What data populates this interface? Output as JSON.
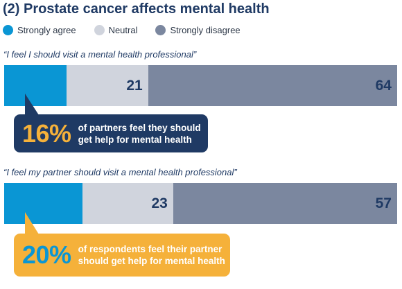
{
  "title": "(2) Prostate cancer affects mental health",
  "colors": {
    "strongly_agree": "#0a96d4",
    "neutral": "#d0d4dd",
    "strongly_disagree": "#7b879f",
    "navy": "#1f3a64",
    "callout1_bg": "#1f3a64",
    "callout1_accent": "#f5b13a",
    "callout2_bg": "#f5b13a",
    "callout2_accent": "#0a96d4"
  },
  "legend": [
    {
      "label": "Strongly agree",
      "color": "#0a96d4"
    },
    {
      "label": "Neutral",
      "color": "#d0d4dd"
    },
    {
      "label": "Strongly disagree",
      "color": "#7b879f"
    }
  ],
  "chart_data": {
    "type": "bar",
    "orientation": "horizontal-stacked",
    "title": "(2) Prostate cancer affects mental health",
    "categories": [
      "“I feel I should visit a mental health professional”",
      "“I feel my partner should visit a mental health professional”"
    ],
    "series": [
      {
        "name": "Strongly agree",
        "values": [
          16,
          20
        ]
      },
      {
        "name": "Neutral",
        "values": [
          21,
          23
        ]
      },
      {
        "name": "Strongly disagree",
        "values": [
          64,
          57
        ]
      }
    ],
    "data_labels": [
      [
        "",
        "21",
        "64"
      ],
      [
        "",
        "23",
        "57"
      ]
    ],
    "legend_position": "top-left",
    "grid": false
  },
  "callouts": [
    {
      "percent": "16%",
      "text_line1": "of partners feel they should",
      "text_line2": "get help for mental health"
    },
    {
      "percent": "20%",
      "text_line1": "of respondents feel their partner",
      "text_line2": "should get help for mental health"
    }
  ]
}
